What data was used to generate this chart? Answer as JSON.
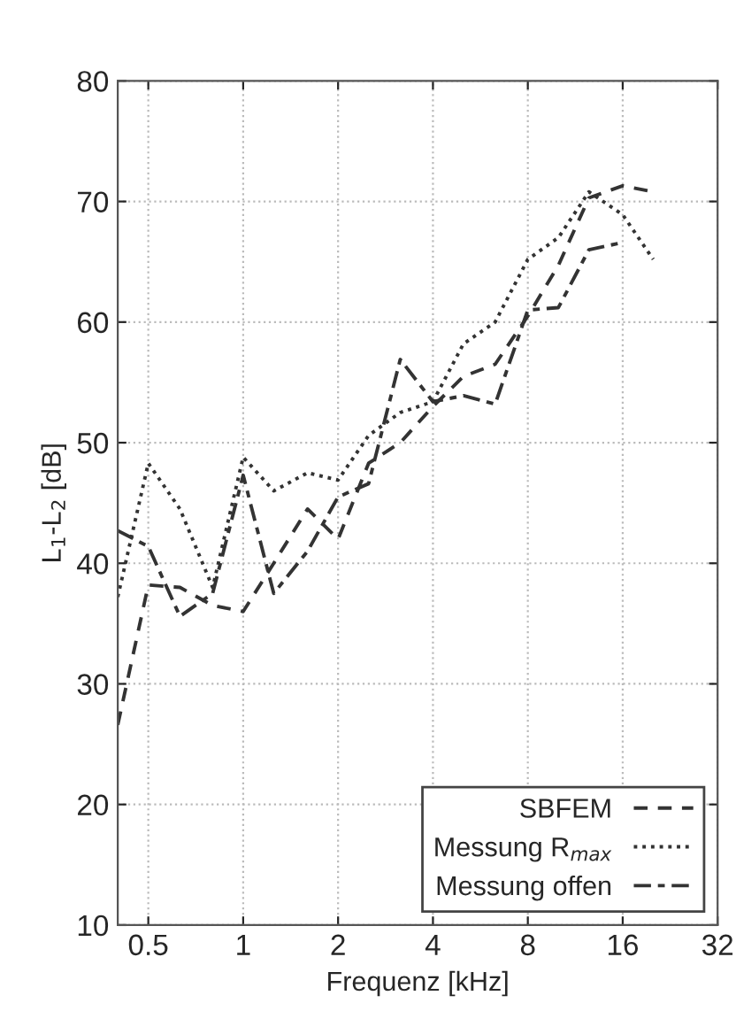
{
  "chart_data": {
    "type": "line",
    "xlabel": "Frequenz [kHz]",
    "ylabel": "L$_{1}$-L$_{2}$ [dB]",
    "x": [
      0.4,
      0.5,
      0.63,
      0.8,
      1,
      1.25,
      1.6,
      2,
      2.5,
      3.15,
      4,
      5,
      6.3,
      8,
      10,
      12.5,
      16,
      20
    ],
    "series": [
      {
        "name": "SBFEM",
        "color": "#333333",
        "line_style": "dashed",
        "values": [
          26.6,
          38.2,
          38,
          36.5,
          36,
          40,
          44.5,
          42,
          48.3,
          50,
          53,
          55.5,
          56.5,
          60.5,
          64.7,
          70.3,
          71.3,
          70.8
        ]
      },
      {
        "name": "Messung R$_{max}$",
        "color": "#333333",
        "line_style": "dotted",
        "values": [
          37.2,
          48.3,
          44.5,
          38,
          48.8,
          46,
          47.5,
          46.9,
          50.6,
          52.5,
          53.4,
          58.2,
          60,
          65.2,
          67,
          70.8,
          68.9,
          65.2
        ]
      },
      {
        "name": "Messung offen",
        "color": "#333333",
        "line_style": "dashed",
        "values": [
          42.7,
          41.4,
          35.6,
          37.5,
          47.3,
          37.5,
          41,
          45.5,
          46.6,
          56.9,
          53.4,
          53.9,
          53.2,
          61,
          61.2,
          66,
          66.6,
          null
        ]
      }
    ],
    "log": "x",
    "xlim": [
      0.4,
      32
    ],
    "xticks": [
      0.5,
      1,
      2,
      4,
      8,
      16,
      32
    ],
    "ylim": [
      10,
      80
    ],
    "yticks": [
      10,
      20,
      30,
      40,
      50,
      60,
      70,
      80
    ],
    "grid": true,
    "legend": "bottom right"
  }
}
